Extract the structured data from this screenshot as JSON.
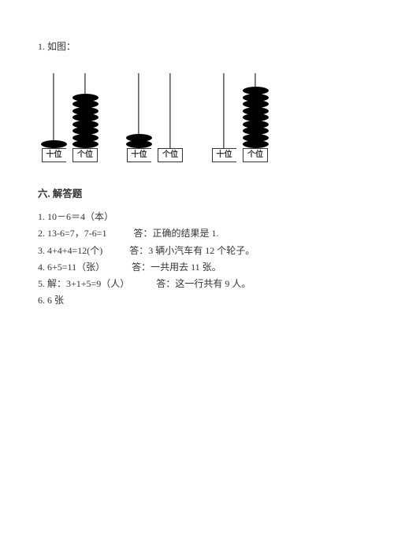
{
  "intro": "1. 如图：",
  "abaci": [
    {
      "columns": [
        {
          "label": "十位",
          "beads": 1
        },
        {
          "label": "个位",
          "beads": 8
        }
      ]
    },
    {
      "columns": [
        {
          "label": "十位",
          "beads": 2
        },
        {
          "label": "个位",
          "beads": 0
        }
      ]
    },
    {
      "columns": [
        {
          "label": "十位",
          "beads": 0
        },
        {
          "label": "个位",
          "beads": 9
        }
      ]
    }
  ],
  "sectionTitle": "六. 解答题",
  "answers": [
    {
      "num": "1.",
      "left": "10－6＝4（本）",
      "right": ""
    },
    {
      "num": "2.",
      "left": "13-6=7，7-6=1",
      "right": "答：正确的结果是 1."
    },
    {
      "num": "3.",
      "left": "4+4+4=12(个)",
      "right": "答：3 辆小汽车有 12 个轮子。"
    },
    {
      "num": "4.",
      "left": "6+5=11（张）",
      "right": "答：一共用去 11 张。"
    },
    {
      "num": "5.",
      "left": "解：3+1+5=9（人）",
      "right": "答：这一行共有 9 人。"
    },
    {
      "num": "6.",
      "left": "6 张",
      "right": ""
    }
  ]
}
